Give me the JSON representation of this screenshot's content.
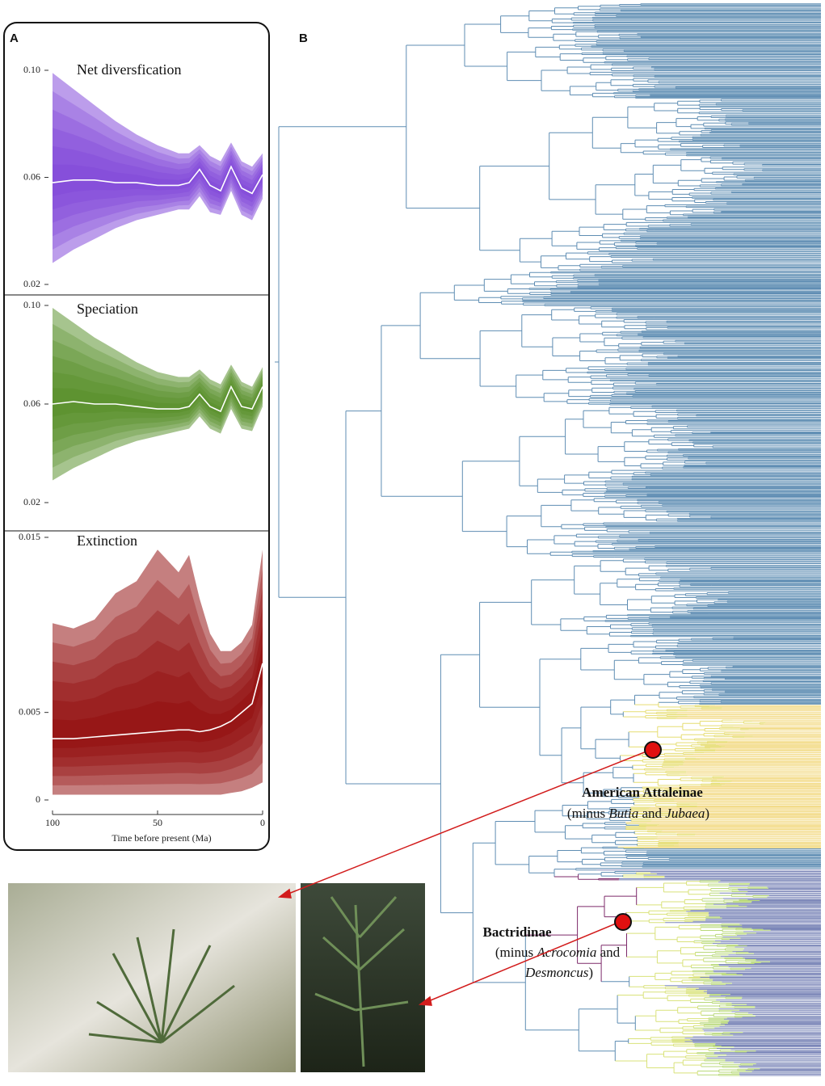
{
  "panel_labels": [
    "A",
    "B"
  ],
  "chart_data": [
    {
      "type": "area",
      "title": "Net diversfication",
      "color": "#7a3cd8",
      "x": [
        100,
        90,
        80,
        70,
        60,
        50,
        40,
        35,
        30,
        25,
        20,
        15,
        10,
        5,
        0
      ],
      "values": [
        0.058,
        0.059,
        0.059,
        0.058,
        0.058,
        0.057,
        0.057,
        0.058,
        0.063,
        0.057,
        0.055,
        0.064,
        0.056,
        0.054,
        0.061
      ],
      "upper": [
        0.099,
        0.093,
        0.087,
        0.081,
        0.076,
        0.072,
        0.069,
        0.069,
        0.072,
        0.068,
        0.066,
        0.073,
        0.066,
        0.064,
        0.069
      ],
      "lower": [
        0.028,
        0.033,
        0.037,
        0.041,
        0.044,
        0.046,
        0.048,
        0.048,
        0.053,
        0.047,
        0.046,
        0.055,
        0.046,
        0.044,
        0.052
      ],
      "xlim": [
        100,
        0
      ],
      "ylim": [
        0.02,
        0.1
      ],
      "yticks": [
        0.02,
        0.06,
        {
          "value": 0.1,
          "label": "0.10"
        }
      ]
    },
    {
      "type": "area",
      "title": "Speciation",
      "color": "#4e8a1e",
      "x": [
        100,
        90,
        80,
        70,
        60,
        50,
        40,
        35,
        30,
        25,
        20,
        15,
        10,
        5,
        0
      ],
      "values": [
        0.06,
        0.061,
        0.06,
        0.06,
        0.059,
        0.058,
        0.058,
        0.059,
        0.064,
        0.059,
        0.057,
        0.067,
        0.059,
        0.058,
        0.067
      ],
      "upper": [
        0.099,
        0.093,
        0.087,
        0.082,
        0.077,
        0.073,
        0.071,
        0.071,
        0.074,
        0.07,
        0.068,
        0.076,
        0.069,
        0.067,
        0.075
      ],
      "lower": [
        0.029,
        0.034,
        0.038,
        0.042,
        0.045,
        0.047,
        0.049,
        0.05,
        0.055,
        0.05,
        0.048,
        0.058,
        0.05,
        0.049,
        0.059
      ],
      "xlim": [
        100,
        0
      ],
      "ylim": [
        0.02,
        0.1
      ],
      "yticks": [
        0.02,
        0.06,
        {
          "value": 0.1,
          "label": "0.10"
        }
      ]
    },
    {
      "type": "area",
      "title": "Extinction",
      "color": "#8b0000",
      "x": [
        100,
        90,
        80,
        70,
        60,
        50,
        40,
        35,
        30,
        25,
        20,
        15,
        10,
        5,
        0
      ],
      "values": [
        0.0035,
        0.0035,
        0.0036,
        0.0037,
        0.0038,
        0.0039,
        0.004,
        0.004,
        0.0039,
        0.004,
        0.0042,
        0.0045,
        0.005,
        0.0055,
        0.0078
      ],
      "upper": [
        0.0101,
        0.0098,
        0.0103,
        0.0118,
        0.0125,
        0.0143,
        0.013,
        0.014,
        0.0115,
        0.0095,
        0.0085,
        0.0085,
        0.009,
        0.01,
        0.0143
      ],
      "lower": [
        0.0003,
        0.0003,
        0.0003,
        0.0003,
        0.0003,
        0.0003,
        0.0003,
        0.0003,
        0.0003,
        0.0003,
        0.0003,
        0.0004,
        0.0005,
        0.0007,
        0.001
      ],
      "xlim": [
        100,
        0
      ],
      "ylim": [
        0,
        0.015
      ],
      "yticks": [
        0,
        0.005,
        0.015
      ],
      "xticks": [
        100,
        50,
        0
      ],
      "x_label": "Time before present (Ma)"
    }
  ],
  "tree_labels": [
    {
      "title": "American Attaleinae",
      "note_lines": [
        [
          "(minus ",
          "Butia",
          " and ",
          "Jubaea",
          ")"
        ]
      ]
    },
    {
      "title": "Bactridinae",
      "note_lines": [
        [
          "(minus ",
          "Acrocomia",
          " and"
        ],
        [
          "Desmoncus",
          ")"
        ]
      ]
    }
  ]
}
